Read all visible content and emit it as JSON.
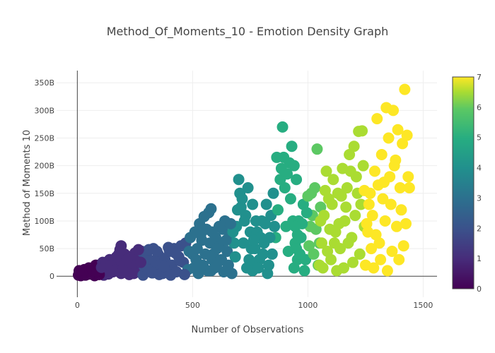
{
  "chart_data": {
    "type": "scatter",
    "title": "Method_Of_Moments_10 - Emotion Density Graph",
    "xlabel": "Number of Observations",
    "ylabel": "Method of Moments 10",
    "xlim": [
      -90,
      1560
    ],
    "ylim": [
      -38,
      372
    ],
    "x_ticks": [
      0,
      500,
      1000,
      1500
    ],
    "x_tick_labels": [
      "0",
      "500",
      "1000",
      "1500"
    ],
    "y_ticks": [
      0,
      50,
      100,
      150,
      200,
      250,
      300,
      350
    ],
    "y_tick_labels": [
      "0",
      "50B",
      "100B",
      "150B",
      "200B",
      "250B",
      "300B",
      "350B"
    ],
    "y_unit": "B",
    "grid": true,
    "colorbar": {
      "colorscale": "viridis",
      "range": [
        0,
        7
      ],
      "ticks": [
        0,
        1,
        2,
        3,
        4,
        5,
        6,
        7
      ],
      "tick_labels": [
        "0",
        "1",
        "2",
        "3",
        "4",
        "5",
        "6",
        "7"
      ]
    },
    "series_colors": [
      "#440154",
      "#472c7a",
      "#3b518b",
      "#2c718e",
      "#21908d",
      "#27ad81",
      "#5cc863",
      "#aadc32",
      "#fde725"
    ],
    "series": [
      {
        "emotion_value": 0,
        "x_range": [
          0,
          200
        ],
        "y_max": 55,
        "points": [
          [
            5,
            2
          ],
          [
            12,
            8
          ],
          [
            20,
            5
          ],
          [
            30,
            12
          ],
          [
            40,
            3
          ],
          [
            50,
            15
          ],
          [
            60,
            10
          ],
          [
            70,
            6
          ],
          [
            80,
            20
          ],
          [
            90,
            14
          ],
          [
            100,
            9
          ],
          [
            110,
            25
          ],
          [
            120,
            18
          ],
          [
            130,
            12
          ],
          [
            140,
            30
          ],
          [
            150,
            22
          ],
          [
            160,
            28
          ],
          [
            170,
            35
          ],
          [
            180,
            40
          ],
          [
            185,
            48
          ],
          [
            190,
            55
          ],
          [
            175,
            15
          ],
          [
            155,
            8
          ],
          [
            135,
            4
          ],
          [
            115,
            2
          ],
          [
            95,
            3
          ],
          [
            75,
            1
          ],
          [
            55,
            4
          ],
          [
            35,
            2
          ],
          [
            25,
            6
          ],
          [
            45,
            8
          ],
          [
            65,
            13
          ],
          [
            85,
            9
          ],
          [
            105,
            16
          ],
          [
            125,
            24
          ],
          [
            145,
            19
          ],
          [
            165,
            11
          ],
          [
            195,
            30
          ],
          [
            15,
            1
          ],
          [
            8,
            10
          ]
        ]
      },
      {
        "emotion_value": 1,
        "x_range": [
          185,
          370
        ],
        "y_max": 50,
        "points": [
          [
            190,
            5
          ],
          [
            200,
            15
          ],
          [
            210,
            25
          ],
          [
            220,
            10
          ],
          [
            230,
            35
          ],
          [
            240,
            20
          ],
          [
            250,
            42
          ],
          [
            260,
            30
          ],
          [
            270,
            8
          ],
          [
            280,
            45
          ],
          [
            290,
            18
          ],
          [
            300,
            38
          ],
          [
            310,
            48
          ],
          [
            320,
            28
          ],
          [
            330,
            50
          ],
          [
            340,
            22
          ],
          [
            350,
            40
          ],
          [
            360,
            12
          ],
          [
            365,
            33
          ],
          [
            205,
            40
          ],
          [
            225,
            3
          ],
          [
            245,
            5
          ],
          [
            265,
            48
          ],
          [
            285,
            2
          ],
          [
            305,
            12
          ],
          [
            325,
            6
          ],
          [
            345,
            45
          ],
          [
            355,
            3
          ],
          [
            215,
            30
          ],
          [
            275,
            25
          ]
        ]
      },
      {
        "emotion_value": 2,
        "x_range": [
          360,
          590
        ],
        "y_max": 122,
        "points": [
          [
            370,
            5
          ],
          [
            380,
            30
          ],
          [
            390,
            15
          ],
          [
            400,
            45
          ],
          [
            410,
            20
          ],
          [
            420,
            50
          ],
          [
            430,
            8
          ],
          [
            440,
            35
          ],
          [
            450,
            55
          ],
          [
            460,
            25
          ],
          [
            470,
            60
          ],
          [
            480,
            12
          ],
          [
            490,
            70
          ],
          [
            500,
            40
          ],
          [
            510,
            80
          ],
          [
            520,
            50
          ],
          [
            530,
            95
          ],
          [
            540,
            65
          ],
          [
            550,
            108
          ],
          [
            560,
            85
          ],
          [
            570,
            115
          ],
          [
            580,
            122
          ],
          [
            585,
            30
          ],
          [
            575,
            60
          ],
          [
            565,
            10
          ],
          [
            545,
            20
          ],
          [
            525,
            5
          ],
          [
            505,
            15
          ],
          [
            485,
            45
          ],
          [
            465,
            3
          ],
          [
            445,
            28
          ],
          [
            425,
            42
          ],
          [
            405,
            2
          ],
          [
            395,
            52
          ],
          [
            375,
            18
          ],
          [
            555,
            40
          ],
          [
            535,
            75
          ],
          [
            515,
            30
          ]
        ]
      },
      {
        "emotion_value": 3,
        "x_range": [
          570,
          770
        ],
        "y_max": 175,
        "points": [
          [
            580,
            10
          ],
          [
            590,
            40
          ],
          [
            600,
            70
          ],
          [
            610,
            25
          ],
          [
            620,
            55
          ],
          [
            630,
            85
          ],
          [
            640,
            100
          ],
          [
            650,
            45
          ],
          [
            660,
            75
          ],
          [
            670,
            5
          ],
          [
            680,
            60
          ],
          [
            690,
            90
          ],
          [
            700,
            175
          ],
          [
            705,
            150
          ],
          [
            710,
            125
          ],
          [
            715,
            140
          ],
          [
            720,
            60
          ],
          [
            730,
            110
          ],
          [
            740,
            160
          ],
          [
            750,
            80
          ],
          [
            760,
            130
          ],
          [
            765,
            20
          ],
          [
            755,
            50
          ],
          [
            745,
            30
          ],
          [
            735,
            15
          ],
          [
            725,
            100
          ],
          [
            695,
            120
          ],
          [
            685,
            35
          ],
          [
            675,
            80
          ],
          [
            665,
            95
          ],
          [
            655,
            20
          ],
          [
            645,
            65
          ],
          [
            635,
            8
          ],
          [
            625,
            30
          ],
          [
            615,
            90
          ],
          [
            605,
            50
          ],
          [
            595,
            15
          ],
          [
            585,
            80
          ]
        ]
      },
      {
        "emotion_value": 4,
        "x_range": [
          750,
          960
        ],
        "y_max": 270,
        "points": [
          [
            760,
            10
          ],
          [
            770,
            50
          ],
          [
            780,
            80
          ],
          [
            790,
            30
          ],
          [
            800,
            100
          ],
          [
            810,
            60
          ],
          [
            820,
            130
          ],
          [
            830,
            20
          ],
          [
            840,
            110
          ],
          [
            850,
            150
          ],
          [
            860,
            70
          ],
          [
            870,
            120
          ],
          [
            880,
            175
          ],
          [
            885,
            195
          ],
          [
            890,
            270
          ],
          [
            895,
            215
          ],
          [
            900,
            160
          ],
          [
            905,
            90
          ],
          [
            910,
            185
          ],
          [
            915,
            45
          ],
          [
            920,
            205
          ],
          [
            925,
            140
          ],
          [
            930,
            235
          ],
          [
            935,
            100
          ],
          [
            940,
            200
          ],
          [
            945,
            60
          ],
          [
            950,
            175
          ],
          [
            955,
            30
          ],
          [
            865,
            215
          ],
          [
            855,
            90
          ],
          [
            845,
            40
          ],
          [
            835,
            70
          ],
          [
            825,
            5
          ],
          [
            815,
            95
          ],
          [
            805,
            40
          ],
          [
            795,
            70
          ],
          [
            785,
            15
          ],
          [
            775,
            100
          ],
          [
            765,
            65
          ]
        ]
      },
      {
        "emotion_value": 5,
        "x_range": [
          930,
          1060
        ],
        "y_max": 230,
        "points": [
          [
            940,
            15
          ],
          [
            950,
            50
          ],
          [
            960,
            100
          ],
          [
            970,
            70
          ],
          [
            980,
            130
          ],
          [
            990,
            30
          ],
          [
            1000,
            145
          ],
          [
            1010,
            90
          ],
          [
            1020,
            110
          ],
          [
            1030,
            160
          ],
          [
            1040,
            230
          ],
          [
            1050,
            60
          ],
          [
            1055,
            125
          ],
          [
            1045,
            20
          ],
          [
            1035,
            85
          ],
          [
            1025,
            40
          ],
          [
            1015,
            150
          ],
          [
            1005,
            55
          ],
          [
            995,
            115
          ],
          [
            985,
            10
          ],
          [
            975,
            95
          ],
          [
            965,
            40
          ],
          [
            955,
            75
          ],
          [
            945,
            90
          ]
        ]
      },
      {
        "emotion_value": 6,
        "x_range": [
          1040,
          1250
        ],
        "y_max": 263,
        "points": [
          [
            1050,
            20
          ],
          [
            1060,
            60
          ],
          [
            1070,
            110
          ],
          [
            1080,
            190
          ],
          [
            1090,
            140
          ],
          [
            1100,
            30
          ],
          [
            1110,
            175
          ],
          [
            1120,
            80
          ],
          [
            1130,
            150
          ],
          [
            1140,
            50
          ],
          [
            1150,
            195
          ],
          [
            1160,
            100
          ],
          [
            1170,
            160
          ],
          [
            1180,
            220
          ],
          [
            1190,
            70
          ],
          [
            1200,
            235
          ],
          [
            1210,
            180
          ],
          [
            1220,
            262
          ],
          [
            1230,
            130
          ],
          [
            1235,
            263
          ],
          [
            1240,
            200
          ],
          [
            1245,
            90
          ],
          [
            1225,
            40
          ],
          [
            1215,
            150
          ],
          [
            1205,
            110
          ],
          [
            1195,
            25
          ],
          [
            1185,
            190
          ],
          [
            1175,
            60
          ],
          [
            1165,
            125
          ],
          [
            1155,
            15
          ],
          [
            1145,
            145
          ],
          [
            1135,
            95
          ],
          [
            1125,
            10
          ],
          [
            1115,
            60
          ],
          [
            1105,
            130
          ],
          [
            1095,
            85
          ],
          [
            1085,
            45
          ],
          [
            1075,
            155
          ],
          [
            1065,
            15
          ],
          [
            1055,
            100
          ]
        ]
      },
      {
        "emotion_value": 7,
        "x_range": [
          1240,
          1440
        ],
        "y_max": 338,
        "points": [
          [
            1250,
            20
          ],
          [
            1260,
            80
          ],
          [
            1270,
            150
          ],
          [
            1280,
            110
          ],
          [
            1290,
            190
          ],
          [
            1300,
            285
          ],
          [
            1310,
            60
          ],
          [
            1320,
            220
          ],
          [
            1330,
            170
          ],
          [
            1340,
            305
          ],
          [
            1350,
            250
          ],
          [
            1360,
            130
          ],
          [
            1370,
            300
          ],
          [
            1380,
            210
          ],
          [
            1390,
            265
          ],
          [
            1400,
            160
          ],
          [
            1410,
            240
          ],
          [
            1420,
            338
          ],
          [
            1425,
            95
          ],
          [
            1430,
            255
          ],
          [
            1435,
            180
          ],
          [
            1440,
            160
          ],
          [
            1415,
            55
          ],
          [
            1405,
            120
          ],
          [
            1395,
            30
          ],
          [
            1385,
            90
          ],
          [
            1375,
            200
          ],
          [
            1365,
            45
          ],
          [
            1355,
            180
          ],
          [
            1345,
            10
          ],
          [
            1335,
            100
          ],
          [
            1325,
            140
          ],
          [
            1315,
            30
          ],
          [
            1305,
            165
          ],
          [
            1295,
            75
          ],
          [
            1285,
            15
          ],
          [
            1275,
            50
          ],
          [
            1265,
            130
          ],
          [
            1255,
            95
          ],
          [
            1245,
            155
          ]
        ]
      }
    ]
  }
}
